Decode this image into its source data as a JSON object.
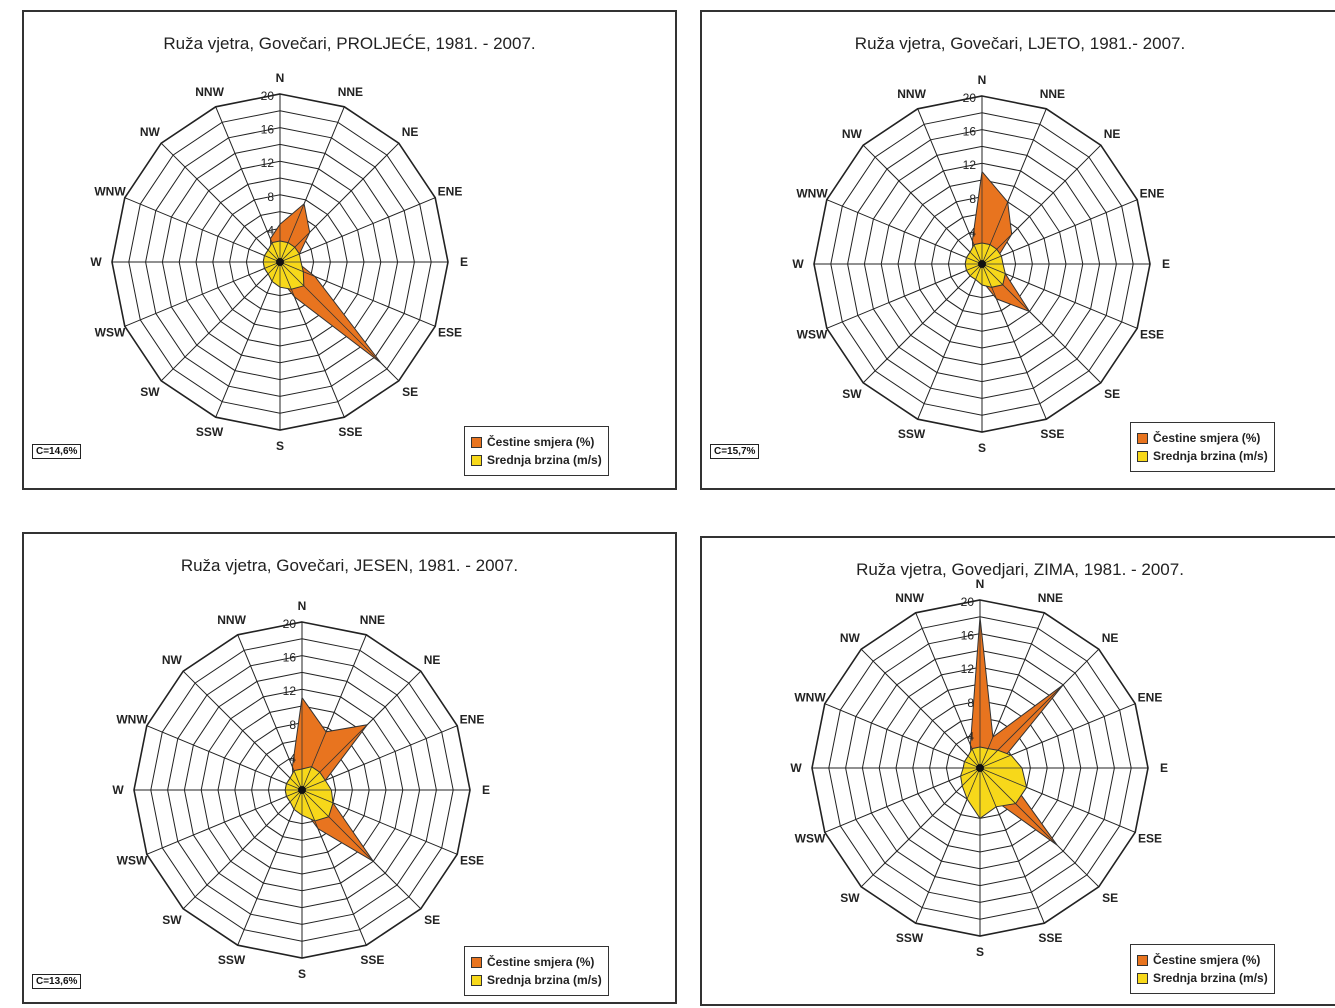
{
  "legend": {
    "frequency_label": "Čestine smjera (%)",
    "speed_label": "Srednja brzina (m/s)",
    "frequency_color": "#e8741f",
    "speed_color": "#f7d81a"
  },
  "chart_data": [
    {
      "type": "radar",
      "title": "Ruža vjetra, Govečari, PROLJEĆE, 1981. - 2007.",
      "calm": "C=14,6%",
      "directions": [
        "N",
        "NNE",
        "NE",
        "ENE",
        "E",
        "ESE",
        "SE",
        "SSE",
        "S",
        "SSW",
        "SW",
        "WSW",
        "W",
        "WNW",
        "NW",
        "NNW"
      ],
      "radial_ticks": [
        "4",
        "8",
        "12",
        "16",
        "20"
      ],
      "rlim": [
        0,
        20
      ],
      "series": [
        {
          "name": "Čestine smjera (%)",
          "values": [
            4.5,
            7.5,
            5,
            2.5,
            2,
            4.5,
            17,
            4.5,
            2,
            1,
            1,
            1,
            1,
            1,
            1.5,
            3
          ]
        },
        {
          "name": "Srednja brzina (m/s)",
          "values": [
            2.5,
            2.5,
            2.5,
            2.5,
            2.5,
            3,
            4,
            3.5,
            3,
            2.5,
            2,
            2,
            2,
            2,
            2,
            2.5
          ]
        }
      ]
    },
    {
      "type": "radar",
      "title": "Ruža vjetra, Govečari, LJETO, 1981.- 2007.",
      "calm": "C=15,7%",
      "directions": [
        "N",
        "NNE",
        "NE",
        "ENE",
        "E",
        "ESE",
        "SE",
        "SSE",
        "S",
        "SSW",
        "SW",
        "WSW",
        "W",
        "WNW",
        "NW",
        "NNW"
      ],
      "radial_ticks": [
        "4",
        "8",
        "12",
        "16",
        "20"
      ],
      "rlim": [
        0,
        20
      ],
      "series": [
        {
          "name": "Čestine smjera (%)",
          "values": [
            11,
            8,
            5,
            2,
            2,
            3,
            8,
            4.5,
            2,
            1,
            1,
            1,
            1,
            1,
            1.5,
            3
          ]
        },
        {
          "name": "Srednja brzina (m/s)",
          "values": [
            2.5,
            2.5,
            2.5,
            2.5,
            2.5,
            3,
            3.5,
            3,
            2.5,
            2,
            2,
            2,
            2,
            2,
            2,
            2.5
          ]
        }
      ]
    },
    {
      "type": "radar",
      "title": "Ruža vjetra, Govečari, JESEN, 1981. - 2007.",
      "calm": "C=13,6%",
      "directions": [
        "N",
        "NNE",
        "NE",
        "ENE",
        "E",
        "ESE",
        "SE",
        "SSE",
        "S",
        "SSW",
        "SW",
        "WSW",
        "W",
        "WNW",
        "NW",
        "NNW"
      ],
      "radial_ticks": [
        "4",
        "8",
        "12",
        "16",
        "20"
      ],
      "rlim": [
        0,
        20
      ],
      "series": [
        {
          "name": "Čestine smjera (%)",
          "values": [
            11,
            7.5,
            11,
            3,
            2,
            4,
            12,
            5,
            2,
            1,
            1,
            1,
            1,
            1,
            1.5,
            3
          ]
        },
        {
          "name": "Srednja brzina (m/s)",
          "values": [
            2.5,
            3,
            3,
            3,
            3.5,
            4,
            4.5,
            4,
            3,
            2.5,
            2,
            2,
            2,
            2,
            2,
            2.5
          ]
        }
      ]
    },
    {
      "type": "radar",
      "title": "Ruža vjetra, Govedjari, ZIMA, 1981. - 2007.",
      "calm": "",
      "directions": [
        "N",
        "NNE",
        "NE",
        "ENE",
        "E",
        "ESE",
        "SE",
        "SSE",
        "S",
        "SSW",
        "SW",
        "WSW",
        "W",
        "WNW",
        "NW",
        "NNW"
      ],
      "radial_ticks": [
        "4",
        "8",
        "12",
        "16",
        "20"
      ],
      "rlim": [
        0,
        20
      ],
      "series": [
        {
          "name": "Čestine smjera (%)",
          "values": [
            18,
            4,
            14,
            3,
            3,
            4,
            13,
            4,
            2,
            1,
            1,
            1,
            1,
            1,
            1.5,
            3
          ]
        },
        {
          "name": "Srednja brzina (m/s)",
          "values": [
            2.5,
            2.5,
            3,
            4,
            5,
            6,
            6,
            5,
            6,
            4,
            3,
            2.5,
            2,
            2,
            2,
            2.5
          ]
        }
      ]
    }
  ]
}
